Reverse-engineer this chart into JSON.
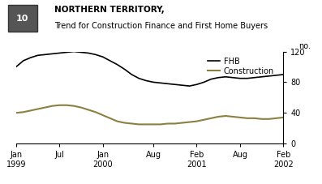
{
  "title_line1": "NORTHERN TERRITORY,",
  "title_line2": "Trend for Construction Finance and First Home Buyers",
  "figure_number": "10",
  "ylabel": "no.",
  "ylim": [
    0,
    120
  ],
  "yticks": [
    0,
    40,
    80,
    120
  ],
  "xtick_labels": [
    "Jan\n1999",
    "Jul",
    "Jan\n2000",
    "Aug",
    "Feb\n2001",
    "Aug",
    "Feb\n2002"
  ],
  "fhb_color": "#000000",
  "construction_color": "#8b8040",
  "legend_fhb": "FHB",
  "legend_construction": "Construction",
  "fhb_data": {
    "x": [
      0,
      1,
      2,
      3,
      4,
      5,
      6,
      7,
      8,
      9,
      10,
      11,
      12,
      13,
      14,
      15,
      16,
      17,
      18,
      19,
      20,
      21,
      22,
      23,
      24,
      25,
      26,
      27,
      28,
      29,
      30,
      31,
      32,
      33,
      34,
      35,
      36,
      37
    ],
    "y": [
      100,
      108,
      112,
      115,
      116,
      117,
      118,
      119,
      120,
      119,
      118,
      116,
      113,
      108,
      103,
      97,
      90,
      85,
      82,
      80,
      79,
      78,
      77,
      76,
      75,
      77,
      80,
      84,
      86,
      87,
      86,
      85,
      85,
      86,
      87,
      88,
      89,
      90
    ]
  },
  "construction_data": {
    "x": [
      0,
      1,
      2,
      3,
      4,
      5,
      6,
      7,
      8,
      9,
      10,
      11,
      12,
      13,
      14,
      15,
      16,
      17,
      18,
      19,
      20,
      21,
      22,
      23,
      24,
      25,
      26,
      27,
      28,
      29,
      30,
      31,
      32,
      33,
      34,
      35,
      36,
      37
    ],
    "y": [
      40,
      41,
      43,
      45,
      47,
      49,
      50,
      50,
      49,
      47,
      44,
      41,
      37,
      33,
      29,
      27,
      26,
      25,
      25,
      25,
      25,
      26,
      26,
      27,
      28,
      29,
      31,
      33,
      35,
      36,
      35,
      34,
      33,
      33,
      32,
      32,
      33,
      34
    ]
  },
  "xtick_positions": [
    0,
    6,
    12,
    19,
    25,
    31,
    37
  ],
  "background_color": "#ffffff"
}
